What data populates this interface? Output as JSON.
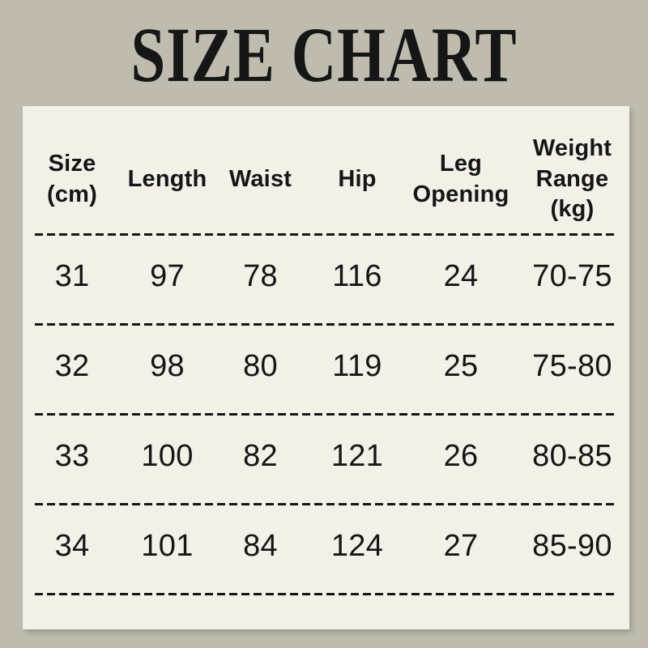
{
  "page": {
    "title": "SIZE CHART"
  },
  "colors": {
    "background": "#bfbcaf",
    "panel": "#f3f0e8",
    "text": "#161616",
    "dash": "#151515"
  },
  "chart_data": {
    "type": "table",
    "title": "SIZE CHART",
    "columns": [
      "Size (cm)",
      "Length",
      "Waist",
      "Hip",
      "Leg Opening",
      "Weight Range (kg)"
    ],
    "rows": [
      [
        "31",
        "97",
        "78",
        "116",
        "24",
        "70-75"
      ],
      [
        "32",
        "98",
        "80",
        "119",
        "25",
        "75-80"
      ],
      [
        "33",
        "100",
        "82",
        "121",
        "26",
        "80-85"
      ],
      [
        "34",
        "101",
        "84",
        "124",
        "27",
        "85-90"
      ]
    ],
    "layout": {
      "row_separator_style": "black dashed line",
      "header_position": "top",
      "units_note_visible": false
    }
  },
  "table": {
    "headers": [
      "Size\n(cm)",
      "Length",
      "Waist",
      "Hip",
      "Leg\nOpening",
      "Weight\nRange\n(kg)"
    ]
  }
}
